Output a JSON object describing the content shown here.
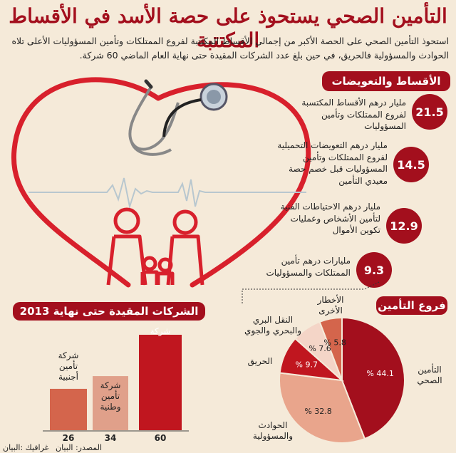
{
  "title": "التأمين الصحي يستحوذ على حصة الأسد في الأقساط المكتتبة",
  "intro": "استحوذ التأمين الصحي على الحصة الأكبر من إجمالي الأقساط المكتتبة لفروع الممتلكات وتأمين المسؤوليات الأعلى تلاه الحوادث والمسؤولية فالحريق، في حين بلغ عدد الشركات المقيدة حتى نهاية العام الماضي 60 شركة.",
  "premiums_section": {
    "header": "الأقساط والتعويضات",
    "stats": [
      {
        "value": "21.5",
        "text": "مليار درهم الأقساط المكتسبة لفروع الممتلكات وتأمين المسؤوليات"
      },
      {
        "value": "14.5",
        "text": "مليار درهم التعويضات التحميلية لفروع الممتلكات وتأمين المسؤوليات قبل خصم حصة معيدي التأمين"
      },
      {
        "value": "12.9",
        "text": "مليار درهم الاحتياطات الفنية لتأمين الأشخاص وعمليات تكوين الأموال"
      },
      {
        "value": "9.3",
        "text": "مليارات درهم تأمين الممتلكات والمسؤوليات"
      }
    ]
  },
  "companies_section": {
    "header": "الشركات المقيدة حتى نهاية 2013"
  },
  "branches_section": {
    "header": "فروع التأمين"
  },
  "chart_data": [
    {
      "type": "bar",
      "title": "الشركات المقيدة حتى نهاية 2013",
      "categories": [
        "شركة",
        "شركة تأمين وطنية",
        "شركة تأمين أجنبية"
      ],
      "values": [
        60,
        34,
        26
      ],
      "value_labels": [
        "60",
        "34",
        "26"
      ],
      "colors": [
        "#c0161f",
        "#e0a08a",
        "#d4654c"
      ],
      "ylim": [
        0,
        60
      ]
    },
    {
      "type": "pie",
      "title": "فروع التأمين",
      "categories": [
        "التأمين الصحي",
        "الحوادث والمسؤولية",
        "الحريق",
        "النقل البري والبحري والجوي",
        "الأخطار الأخرى"
      ],
      "values": [
        44.1,
        32.8,
        9.7,
        7.6,
        5.8
      ],
      "value_labels": [
        "% 44.1",
        "% 32.8",
        "% 9.7",
        "% 7.6",
        "% 5.8"
      ],
      "colors": [
        "#a30f1d",
        "#e9a58c",
        "#c0161f",
        "#f4d5c7",
        "#d4654c"
      ]
    }
  ],
  "footer": {
    "source": "المصدر: البيان",
    "graphic": "غرافيك :البيان"
  }
}
